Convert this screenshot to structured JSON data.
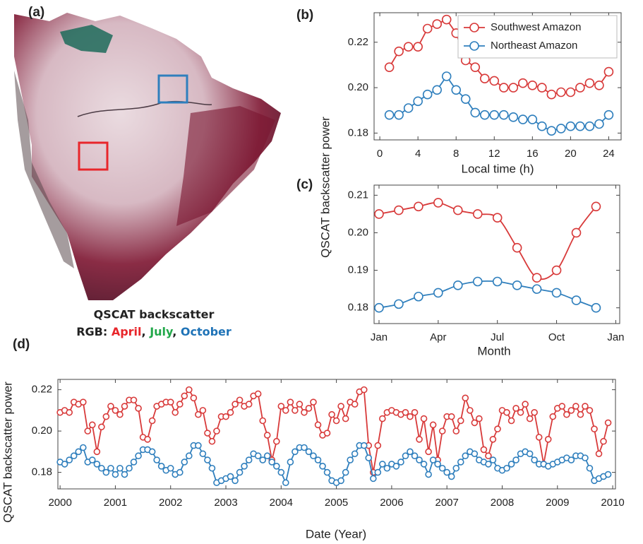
{
  "panel_a": {
    "label": "(a)",
    "caption": "QSCAT backscatter",
    "rgb_label": "RGB:",
    "separator": ",",
    "rgb_months": [
      {
        "text": "April",
        "color": "#e8262b"
      },
      {
        "text": "July",
        "color": "#22a84a"
      },
      {
        "text": "October",
        "color": "#1f73b7"
      }
    ]
  },
  "chart_data": [
    {
      "type": "line",
      "panel_label": "(b)",
      "xlabel": "Local time (h)",
      "ylabel": "QSCAT backscatter power",
      "legend": "upper right",
      "xlim": [
        -0.6,
        25.3
      ],
      "xticks": [
        0,
        4,
        8,
        12,
        16,
        20,
        24
      ],
      "ylim": [
        0.177,
        0.233
      ],
      "yticks": [
        0.18,
        {
          "value": 0.2,
          "label": "0.20"
        },
        0.22
      ],
      "x": [
        1,
        2,
        3,
        4,
        5,
        6,
        7,
        8,
        9,
        10,
        11,
        12,
        13,
        14,
        15,
        16,
        17,
        18,
        19,
        20,
        21,
        22,
        23,
        24
      ],
      "series": [
        {
          "name": "Southwest Amazon",
          "color": "#d83a3a",
          "values": [
            0.209,
            0.216,
            0.218,
            0.218,
            0.226,
            0.228,
            0.23,
            0.224,
            0.212,
            0.209,
            0.204,
            0.203,
            0.2,
            0.2,
            0.202,
            0.201,
            0.2,
            0.197,
            0.198,
            0.198,
            0.2,
            0.202,
            0.201,
            0.207
          ]
        },
        {
          "name": "Northeast Amazon",
          "color": "#2f7fbd",
          "values": [
            0.188,
            0.188,
            0.191,
            0.194,
            0.197,
            0.199,
            0.205,
            0.199,
            0.195,
            0.189,
            0.188,
            0.188,
            0.188,
            0.187,
            0.186,
            0.186,
            0.183,
            0.181,
            0.182,
            0.183,
            0.183,
            0.183,
            0.184,
            0.188
          ]
        }
      ]
    },
    {
      "type": "line",
      "smooth": true,
      "panel_label": "(c)",
      "xlabel": "Month",
      "xlim": [
        -0.25,
        12.2
      ],
      "xticks": [
        {
          "value": 0,
          "label": "Jan"
        },
        {
          "value": 3,
          "label": "Apr"
        },
        {
          "value": 6,
          "label": "Jul"
        },
        {
          "value": 9,
          "label": "Oct"
        },
        {
          "value": 12,
          "label": "Jan"
        }
      ],
      "ylim": [
        0.1758,
        0.2127
      ],
      "yticks": [
        0.18,
        0.19,
        {
          "value": 0.2,
          "label": "0.20"
        },
        0.21
      ],
      "x": [
        0,
        1,
        2,
        3,
        4,
        5,
        6,
        7,
        8,
        9,
        10,
        11
      ],
      "series": [
        {
          "name": "Southwest Amazon",
          "color": "#d83a3a",
          "values": [
            0.205,
            0.206,
            0.207,
            0.208,
            0.206,
            0.205,
            0.204,
            0.196,
            0.188,
            0.19,
            0.2,
            0.207
          ]
        },
        {
          "name": "Northeast Amazon",
          "color": "#2f7fbd",
          "values": [
            0.18,
            0.181,
            0.183,
            0.184,
            0.186,
            0.187,
            0.187,
            0.186,
            0.185,
            0.184,
            0.182,
            0.18
          ]
        }
      ]
    },
    {
      "type": "line",
      "panel_label": "(d)",
      "xlabel": "Date (Year)",
      "ylabel": "QSCAT backscatter power",
      "xlim": [
        1999.96,
        2010.05
      ],
      "xticks": [
        2000,
        2001,
        2002,
        2003,
        2004,
        2005,
        2006,
        2007,
        2008,
        2009,
        2010
      ],
      "ylim": [
        0.172,
        0.225
      ],
      "yticks": [
        0.18,
        {
          "value": 0.2,
          "label": "0.20"
        },
        0.22
      ],
      "x": [
        2000,
        2000.083,
        2000.167,
        2000.25,
        2000.333,
        2000.417,
        2000.5,
        2000.583,
        2000.667,
        2000.75,
        2000.833,
        2000.917,
        2001,
        2001.083,
        2001.167,
        2001.25,
        2001.333,
        2001.417,
        2001.5,
        2001.583,
        2001.667,
        2001.75,
        2001.833,
        2001.917,
        2002,
        2002.083,
        2002.167,
        2002.25,
        2002.333,
        2002.417,
        2002.5,
        2002.583,
        2002.667,
        2002.75,
        2002.833,
        2002.917,
        2003,
        2003.083,
        2003.167,
        2003.25,
        2003.333,
        2003.417,
        2003.5,
        2003.583,
        2003.667,
        2003.75,
        2003.833,
        2003.917,
        2004,
        2004.083,
        2004.167,
        2004.25,
        2004.333,
        2004.417,
        2004.5,
        2004.583,
        2004.667,
        2004.75,
        2004.833,
        2004.917,
        2005,
        2005.083,
        2005.167,
        2005.25,
        2005.333,
        2005.417,
        2005.5,
        2005.583,
        2005.667,
        2005.75,
        2005.833,
        2005.917,
        2006,
        2006.083,
        2006.167,
        2006.25,
        2006.333,
        2006.417,
        2006.5,
        2006.583,
        2006.667,
        2006.75,
        2006.833,
        2006.917,
        2007,
        2007.083,
        2007.167,
        2007.25,
        2007.333,
        2007.417,
        2007.5,
        2007.583,
        2007.667,
        2007.75,
        2007.833,
        2007.917,
        2008,
        2008.083,
        2008.167,
        2008.25,
        2008.333,
        2008.417,
        2008.5,
        2008.583,
        2008.667,
        2008.75,
        2008.833,
        2008.917,
        2009,
        2009.083,
        2009.167,
        2009.25,
        2009.333,
        2009.417,
        2009.5,
        2009.583,
        2009.667,
        2009.75,
        2009.833,
        2009.917
      ],
      "series": [
        {
          "name": "Southwest Amazon",
          "color": "#d83a3a",
          "values": [
            0.209,
            0.21,
            0.209,
            0.214,
            0.213,
            0.214,
            0.2,
            0.203,
            0.19,
            0.202,
            0.207,
            0.212,
            0.21,
            0.208,
            0.212,
            0.215,
            0.215,
            0.211,
            0.197,
            0.196,
            0.205,
            0.212,
            0.213,
            0.214,
            0.214,
            0.209,
            0.213,
            0.217,
            0.22,
            0.216,
            0.208,
            0.21,
            0.199,
            0.195,
            0.2,
            0.207,
            0.207,
            0.209,
            0.213,
            0.215,
            0.212,
            0.213,
            0.217,
            0.218,
            0.205,
            0.198,
            0.186,
            0.195,
            0.212,
            0.21,
            0.214,
            0.21,
            0.213,
            0.209,
            0.211,
            0.214,
            0.203,
            0.198,
            0.199,
            0.208,
            0.205,
            0.212,
            0.206,
            0.214,
            0.213,
            0.219,
            0.22,
            0.193,
            0.18,
            0.193,
            0.206,
            0.209,
            0.21,
            0.209,
            0.208,
            0.209,
            0.207,
            0.209,
            0.196,
            0.206,
            0.19,
            0.203,
            0.186,
            0.2,
            0.207,
            0.207,
            0.2,
            0.205,
            0.216,
            0.21,
            0.204,
            0.206,
            0.191,
            0.188,
            0.196,
            0.201,
            0.21,
            0.209,
            0.205,
            0.211,
            0.209,
            0.213,
            0.206,
            0.209,
            0.197,
            0.184,
            0.196,
            0.207,
            0.211,
            0.212,
            0.208,
            0.21,
            0.212,
            0.208,
            0.212,
            0.21,
            0.201,
            0.189,
            0.195,
            0.204
          ]
        },
        {
          "name": "Northeast Amazon",
          "color": "#2f7fbd",
          "values": [
            0.185,
            0.184,
            0.186,
            0.188,
            0.19,
            0.192,
            0.185,
            0.186,
            0.184,
            0.182,
            0.18,
            0.182,
            0.179,
            0.182,
            0.179,
            0.182,
            0.185,
            0.188,
            0.191,
            0.191,
            0.19,
            0.186,
            0.183,
            0.181,
            0.182,
            0.179,
            0.18,
            0.185,
            0.188,
            0.193,
            0.193,
            0.189,
            0.186,
            0.182,
            0.175,
            0.176,
            0.177,
            0.178,
            0.176,
            0.18,
            0.183,
            0.186,
            0.189,
            0.188,
            0.186,
            0.188,
            0.185,
            0.183,
            0.18,
            0.175,
            0.185,
            0.19,
            0.192,
            0.192,
            0.19,
            0.188,
            0.186,
            0.183,
            0.18,
            0.176,
            0.175,
            0.176,
            0.18,
            0.186,
            0.189,
            0.193,
            0.193,
            0.187,
            0.177,
            0.18,
            0.184,
            0.182,
            0.184,
            0.183,
            0.185,
            0.188,
            0.19,
            0.188,
            0.186,
            0.184,
            0.179,
            0.186,
            0.184,
            0.182,
            0.18,
            0.178,
            0.182,
            0.185,
            0.188,
            0.19,
            0.189,
            0.186,
            0.185,
            0.184,
            0.186,
            0.182,
            0.181,
            0.182,
            0.184,
            0.186,
            0.189,
            0.19,
            0.189,
            0.186,
            0.184,
            0.184,
            0.183,
            0.184,
            0.185,
            0.186,
            0.187,
            0.186,
            0.188,
            0.188,
            0.187,
            0.182,
            0.176,
            0.177,
            0.178,
            0.179
          ]
        }
      ]
    }
  ]
}
